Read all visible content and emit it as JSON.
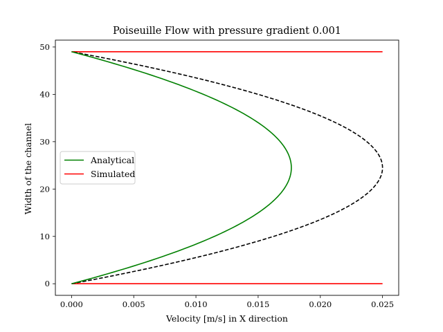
{
  "chart_data": {
    "type": "line",
    "title": "Poiseuille Flow with pressure gradient 0.001",
    "xlabel": "Velocity [m/s] in X direction",
    "ylabel": "Width of the channel",
    "xlim": [
      -0.0013,
      0.0263
    ],
    "ylim": [
      -2.45,
      51.45
    ],
    "xticks": [
      0.0,
      0.005,
      0.01,
      0.015,
      0.02,
      0.025
    ],
    "xtick_labels": [
      "0.000",
      "0.005",
      "0.010",
      "0.015",
      "0.020",
      "0.025"
    ],
    "yticks": [
      0,
      10,
      20,
      30,
      40,
      50
    ],
    "ytick_labels": [
      "0",
      "10",
      "20",
      "30",
      "40",
      "50"
    ],
    "grid": false,
    "legend_position": "center-left",
    "series": [
      {
        "name": "Analytical",
        "color": "#008000",
        "style": "solid",
        "shape": "parabola",
        "points": [
          [
            0.0,
            0.0
          ],
          [
            0.00835,
            7.35
          ],
          [
            0.01443,
            14.7
          ],
          [
            0.01767,
            24.5
          ],
          [
            0.01443,
            34.3
          ],
          [
            0.00835,
            41.65
          ],
          [
            0.0,
            49.0
          ]
        ]
      },
      {
        "color": "#000000",
        "style": "dashed",
        "shape": "parabola",
        "points": [
          [
            0.0,
            0.0
          ],
          [
            0.01181,
            7.35
          ],
          [
            0.02041,
            14.7
          ],
          [
            0.025,
            24.5
          ],
          [
            0.02041,
            34.3
          ],
          [
            0.01181,
            41.65
          ],
          [
            0.0,
            49.0
          ]
        ]
      },
      {
        "name": "Simulated",
        "color": "#ff0000",
        "style": "solid",
        "shape": "hline",
        "points": [
          [
            0.0,
            0.0
          ],
          [
            0.025,
            0.0
          ]
        ]
      },
      {
        "color": "#ff0000",
        "style": "solid",
        "shape": "hline",
        "points": [
          [
            0.0,
            49.0
          ],
          [
            0.025,
            49.0
          ]
        ]
      }
    ]
  }
}
